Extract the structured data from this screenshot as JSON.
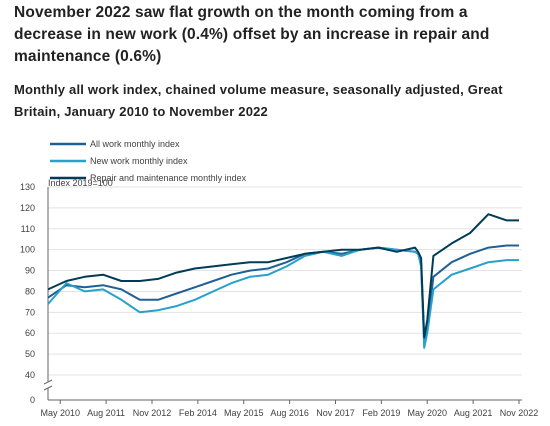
{
  "title": "November 2022 saw flat growth on the month coming from a decrease in new work (0.4%) offset by an increase in repair and maintenance (0.6%)",
  "subtitle": "Monthly all work index, chained volume measure, seasonally adjusted, Great Britain, January 2010 to November 2022",
  "chart_data": {
    "type": "line",
    "ylabel": "Index 2019=100",
    "xlabel": "",
    "ylim": [
      0,
      130
    ],
    "y_axis_break": "between 0 and 40",
    "y_ticks": [
      0,
      40,
      50,
      60,
      70,
      80,
      90,
      100,
      110,
      120,
      130
    ],
    "x_tick_labels": [
      "May 2010",
      "Aug 2011",
      "Nov 2012",
      "Feb 2014",
      "May 2015",
      "Aug 2016",
      "Nov 2017",
      "Feb 2019",
      "May 2020",
      "Aug 2021",
      "Nov 2022"
    ],
    "grid": "horizontal",
    "legend_position": "top-left",
    "series": [
      {
        "name": "All work monthly index",
        "color": "#206095",
        "values": [
          {
            "x": "Jan 2010",
            "y": 77
          },
          {
            "x": "Jul 2010",
            "y": 83
          },
          {
            "x": "Jan 2011",
            "y": 82
          },
          {
            "x": "Jul 2011",
            "y": 83
          },
          {
            "x": "Jan 2012",
            "y": 81
          },
          {
            "x": "Jul 2012",
            "y": 76
          },
          {
            "x": "Jan 2013",
            "y": 76
          },
          {
            "x": "Jul 2013",
            "y": 79
          },
          {
            "x": "Jan 2014",
            "y": 82
          },
          {
            "x": "Jul 2014",
            "y": 85
          },
          {
            "x": "Jan 2015",
            "y": 88
          },
          {
            "x": "Jul 2015",
            "y": 90
          },
          {
            "x": "Jan 2016",
            "y": 91
          },
          {
            "x": "Jul 2016",
            "y": 94
          },
          {
            "x": "Jan 2017",
            "y": 98
          },
          {
            "x": "Jul 2017",
            "y": 99
          },
          {
            "x": "Jan 2018",
            "y": 98
          },
          {
            "x": "Jul 2018",
            "y": 100
          },
          {
            "x": "Jan 2019",
            "y": 101
          },
          {
            "x": "Jul 2019",
            "y": 100
          },
          {
            "x": "Jan 2020",
            "y": 99
          },
          {
            "x": "Feb 2020",
            "y": 98
          },
          {
            "x": "Mar 2020",
            "y": 94
          },
          {
            "x": "Apr 2020",
            "y": 56
          },
          {
            "x": "May 2020",
            "y": 62
          },
          {
            "x": "Jul 2020",
            "y": 87
          },
          {
            "x": "Jan 2021",
            "y": 94
          },
          {
            "x": "Jul 2021",
            "y": 98
          },
          {
            "x": "Jan 2022",
            "y": 101
          },
          {
            "x": "Jul 2022",
            "y": 102
          },
          {
            "x": "Nov 2022",
            "y": 102
          }
        ]
      },
      {
        "name": "New work monthly index",
        "color": "#27a0cc",
        "values": [
          {
            "x": "Jan 2010",
            "y": 74
          },
          {
            "x": "Jul 2010",
            "y": 84
          },
          {
            "x": "Jan 2011",
            "y": 80
          },
          {
            "x": "Jul 2011",
            "y": 81
          },
          {
            "x": "Jan 2012",
            "y": 76
          },
          {
            "x": "Jul 2012",
            "y": 70
          },
          {
            "x": "Jan 2013",
            "y": 71
          },
          {
            "x": "Jul 2013",
            "y": 73
          },
          {
            "x": "Jan 2014",
            "y": 76
          },
          {
            "x": "Jul 2014",
            "y": 80
          },
          {
            "x": "Jan 2015",
            "y": 84
          },
          {
            "x": "Jul 2015",
            "y": 87
          },
          {
            "x": "Jan 2016",
            "y": 88
          },
          {
            "x": "Jul 2016",
            "y": 92
          },
          {
            "x": "Jan 2017",
            "y": 97
          },
          {
            "x": "Jul 2017",
            "y": 99
          },
          {
            "x": "Jan 2018",
            "y": 97
          },
          {
            "x": "Jul 2018",
            "y": 100
          },
          {
            "x": "Jan 2019",
            "y": 101
          },
          {
            "x": "Jul 2019",
            "y": 100
          },
          {
            "x": "Jan 2020",
            "y": 99
          },
          {
            "x": "Feb 2020",
            "y": 98
          },
          {
            "x": "Mar 2020",
            "y": 92
          },
          {
            "x": "Apr 2020",
            "y": 53
          },
          {
            "x": "May 2020",
            "y": 60
          },
          {
            "x": "Jul 2020",
            "y": 81
          },
          {
            "x": "Jan 2021",
            "y": 88
          },
          {
            "x": "Jul 2021",
            "y": 91
          },
          {
            "x": "Jan 2022",
            "y": 94
          },
          {
            "x": "Jul 2022",
            "y": 95
          },
          {
            "x": "Nov 2022",
            "y": 95
          }
        ]
      },
      {
        "name": "Repair and maintenance monthly index",
        "color": "#003c57",
        "values": [
          {
            "x": "Jan 2010",
            "y": 81
          },
          {
            "x": "Jul 2010",
            "y": 85
          },
          {
            "x": "Jan 2011",
            "y": 87
          },
          {
            "x": "Jul 2011",
            "y": 88
          },
          {
            "x": "Jan 2012",
            "y": 85
          },
          {
            "x": "Jul 2012",
            "y": 85
          },
          {
            "x": "Jan 2013",
            "y": 86
          },
          {
            "x": "Jul 2013",
            "y": 89
          },
          {
            "x": "Jan 2014",
            "y": 91
          },
          {
            "x": "Jul 2014",
            "y": 92
          },
          {
            "x": "Jan 2015",
            "y": 93
          },
          {
            "x": "Jul 2015",
            "y": 94
          },
          {
            "x": "Jan 2016",
            "y": 94
          },
          {
            "x": "Jul 2016",
            "y": 96
          },
          {
            "x": "Jan 2017",
            "y": 98
          },
          {
            "x": "Jul 2017",
            "y": 99
          },
          {
            "x": "Jan 2018",
            "y": 100
          },
          {
            "x": "Jul 2018",
            "y": 100
          },
          {
            "x": "Jan 2019",
            "y": 101
          },
          {
            "x": "Jul 2019",
            "y": 99
          },
          {
            "x": "Jan 2020",
            "y": 101
          },
          {
            "x": "Feb 2020",
            "y": 99
          },
          {
            "x": "Mar 2020",
            "y": 96
          },
          {
            "x": "Apr 2020",
            "y": 58
          },
          {
            "x": "May 2020",
            "y": 66
          },
          {
            "x": "Jul 2020",
            "y": 97
          },
          {
            "x": "Jan 2021",
            "y": 103
          },
          {
            "x": "Jul 2021",
            "y": 108
          },
          {
            "x": "Jan 2022",
            "y": 117
          },
          {
            "x": "Jul 2022",
            "y": 114
          },
          {
            "x": "Nov 2022",
            "y": 114
          }
        ]
      }
    ]
  }
}
